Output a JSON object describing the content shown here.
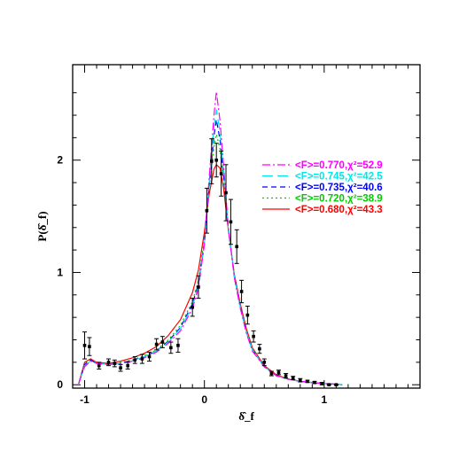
{
  "chart_data": {
    "type": "line",
    "title": "",
    "xlabel": "δ̂_f",
    "ylabel": "P(δ̂_f)",
    "xlim": [
      -1.1,
      1.8
    ],
    "ylim": [
      -0.03,
      2.85
    ],
    "x_ticks": [
      -1,
      0,
      1
    ],
    "y_ticks": [
      0,
      1,
      2
    ],
    "x_tick_labels": [
      "-1",
      "0",
      "1"
    ],
    "y_tick_labels": [
      "0",
      "1",
      "2"
    ],
    "grid": false,
    "legend_position": "right",
    "series": [
      {
        "name": "<F>=0.770,χ²=52.9",
        "color": "#ff00ff",
        "dash": "9,3,2,3",
        "x": [
          -1.05,
          -1.0,
          -0.95,
          -0.9,
          -0.8,
          -0.7,
          -0.6,
          -0.5,
          -0.4,
          -0.3,
          -0.2,
          -0.1,
          -0.05,
          0.0,
          0.04,
          0.08,
          0.1,
          0.13,
          0.16,
          0.2,
          0.25,
          0.3,
          0.35,
          0.4,
          0.5,
          0.6,
          0.7,
          0.8,
          0.9,
          1.0,
          1.1,
          1.15
        ],
        "values": [
          0.01,
          0.16,
          0.21,
          0.19,
          0.18,
          0.19,
          0.21,
          0.24,
          0.29,
          0.37,
          0.48,
          0.68,
          0.86,
          1.25,
          1.85,
          2.4,
          2.61,
          2.35,
          1.95,
          1.4,
          0.95,
          0.68,
          0.46,
          0.3,
          0.16,
          0.08,
          0.05,
          0.03,
          0.02,
          0.01,
          0.005,
          0.0
        ]
      },
      {
        "name": "<F>=0.745,χ²=42.5",
        "color": "#00e8e8",
        "dash": "12,5",
        "x": [
          -1.05,
          -1.0,
          -0.95,
          -0.9,
          -0.8,
          -0.7,
          -0.6,
          -0.5,
          -0.4,
          -0.3,
          -0.2,
          -0.1,
          -0.05,
          0.0,
          0.04,
          0.08,
          0.1,
          0.13,
          0.16,
          0.2,
          0.25,
          0.3,
          0.35,
          0.4,
          0.5,
          0.6,
          0.7,
          0.8,
          0.9,
          1.0,
          1.1,
          1.15
        ],
        "values": [
          0.01,
          0.17,
          0.21,
          0.19,
          0.18,
          0.19,
          0.21,
          0.25,
          0.3,
          0.38,
          0.5,
          0.7,
          0.88,
          1.26,
          1.8,
          2.3,
          2.45,
          2.25,
          1.9,
          1.4,
          0.96,
          0.69,
          0.47,
          0.31,
          0.16,
          0.08,
          0.05,
          0.03,
          0.02,
          0.01,
          0.005,
          0.0
        ]
      },
      {
        "name": "<F>=0.735,χ²=40.6",
        "color": "#0000ff",
        "dash": "6,4",
        "x": [
          -1.05,
          -1.0,
          -0.95,
          -0.9,
          -0.8,
          -0.7,
          -0.6,
          -0.5,
          -0.4,
          -0.3,
          -0.2,
          -0.1,
          -0.05,
          0.0,
          0.04,
          0.08,
          0.1,
          0.13,
          0.16,
          0.2,
          0.25,
          0.3,
          0.35,
          0.4,
          0.5,
          0.6,
          0.7,
          0.8,
          0.9,
          1.0,
          1.1,
          1.15
        ],
        "values": [
          0.01,
          0.18,
          0.22,
          0.19,
          0.18,
          0.19,
          0.22,
          0.25,
          0.3,
          0.39,
          0.51,
          0.72,
          0.9,
          1.27,
          1.78,
          2.22,
          2.36,
          2.18,
          1.86,
          1.39,
          0.96,
          0.69,
          0.47,
          0.31,
          0.16,
          0.08,
          0.05,
          0.03,
          0.02,
          0.01,
          0.005,
          0.0
        ]
      },
      {
        "name": "<F>=0.720,χ²=38.9",
        "color": "#00cc00",
        "dash": "2,3",
        "x": [
          -1.05,
          -1.0,
          -0.95,
          -0.9,
          -0.8,
          -0.7,
          -0.6,
          -0.5,
          -0.4,
          -0.3,
          -0.2,
          -0.1,
          -0.05,
          0.0,
          0.04,
          0.08,
          0.1,
          0.13,
          0.16,
          0.2,
          0.25,
          0.3,
          0.35,
          0.4,
          0.5,
          0.6,
          0.7,
          0.8,
          0.9,
          1.0,
          1.1,
          1.15
        ],
        "values": [
          0.01,
          0.19,
          0.22,
          0.2,
          0.18,
          0.2,
          0.22,
          0.26,
          0.31,
          0.4,
          0.53,
          0.74,
          0.93,
          1.3,
          1.76,
          2.12,
          2.23,
          2.1,
          1.82,
          1.38,
          0.96,
          0.7,
          0.48,
          0.32,
          0.16,
          0.08,
          0.05,
          0.03,
          0.02,
          0.01,
          0.005,
          0.0
        ]
      },
      {
        "name": "<F>=0.680,χ²=43.3",
        "color": "#ff0000",
        "dash": "",
        "x": [
          -1.05,
          -1.0,
          -0.95,
          -0.9,
          -0.8,
          -0.7,
          -0.6,
          -0.5,
          -0.4,
          -0.3,
          -0.2,
          -0.1,
          -0.05,
          0.0,
          0.04,
          0.08,
          0.1,
          0.13,
          0.16,
          0.2,
          0.25,
          0.3,
          0.35,
          0.4,
          0.5,
          0.6,
          0.7,
          0.8,
          0.9,
          1.0,
          1.1,
          1.15
        ],
        "values": [
          0.01,
          0.2,
          0.23,
          0.2,
          0.19,
          0.21,
          0.24,
          0.28,
          0.34,
          0.44,
          0.58,
          0.82,
          1.02,
          1.36,
          1.7,
          1.92,
          1.96,
          1.93,
          1.75,
          1.38,
          0.98,
          0.72,
          0.5,
          0.33,
          0.17,
          0.09,
          0.05,
          0.03,
          0.02,
          0.01,
          0.005,
          0.0
        ]
      }
    ],
    "data_points": [
      {
        "x": -1.0,
        "y": 0.35,
        "err": 0.12
      },
      {
        "x": -0.96,
        "y": 0.34,
        "err": 0.08
      },
      {
        "x": -0.88,
        "y": 0.17,
        "err": 0.03
      },
      {
        "x": -0.8,
        "y": 0.2,
        "err": 0.03
      },
      {
        "x": -0.75,
        "y": 0.19,
        "err": 0.03
      },
      {
        "x": -0.7,
        "y": 0.15,
        "err": 0.03
      },
      {
        "x": -0.64,
        "y": 0.17,
        "err": 0.03
      },
      {
        "x": -0.58,
        "y": 0.22,
        "err": 0.03
      },
      {
        "x": -0.52,
        "y": 0.23,
        "err": 0.04
      },
      {
        "x": -0.46,
        "y": 0.25,
        "err": 0.04
      },
      {
        "x": -0.4,
        "y": 0.36,
        "err": 0.05
      },
      {
        "x": -0.35,
        "y": 0.38,
        "err": 0.05
      },
      {
        "x": -0.28,
        "y": 0.33,
        "err": 0.05
      },
      {
        "x": -0.22,
        "y": 0.35,
        "err": 0.06
      },
      {
        "x": -0.1,
        "y": 0.69,
        "err": 0.08
      },
      {
        "x": -0.05,
        "y": 0.87,
        "err": 0.1
      },
      {
        "x": 0.02,
        "y": 1.55,
        "err": 0.2
      },
      {
        "x": 0.06,
        "y": 1.99,
        "err": 0.2
      },
      {
        "x": 0.1,
        "y": 2.0,
        "err": 0.15
      },
      {
        "x": 0.14,
        "y": 1.88,
        "err": 0.2
      },
      {
        "x": 0.18,
        "y": 1.71,
        "err": 0.25
      },
      {
        "x": 0.22,
        "y": 1.45,
        "err": 0.2
      },
      {
        "x": 0.27,
        "y": 1.23,
        "err": 0.15
      },
      {
        "x": 0.31,
        "y": 0.83,
        "err": 0.1
      },
      {
        "x": 0.36,
        "y": 0.62,
        "err": 0.08
      },
      {
        "x": 0.41,
        "y": 0.43,
        "err": 0.05
      },
      {
        "x": 0.46,
        "y": 0.32,
        "err": 0.04
      },
      {
        "x": 0.5,
        "y": 0.2,
        "err": 0.03
      },
      {
        "x": 0.56,
        "y": 0.1,
        "err": 0.02
      },
      {
        "x": 0.62,
        "y": 0.11,
        "err": 0.02
      },
      {
        "x": 0.68,
        "y": 0.08,
        "err": 0.02
      },
      {
        "x": 0.74,
        "y": 0.06,
        "err": 0.015
      },
      {
        "x": 0.8,
        "y": 0.04,
        "err": 0.015
      },
      {
        "x": 0.86,
        "y": 0.03,
        "err": 0.01
      },
      {
        "x": 0.92,
        "y": 0.02,
        "err": 0.01
      },
      {
        "x": 0.98,
        "y": 0.01,
        "err": 0.01
      },
      {
        "x": 1.04,
        "y": 0.0,
        "err": 0.005
      },
      {
        "x": 1.1,
        "y": 0.0,
        "err": 0.005
      }
    ]
  }
}
